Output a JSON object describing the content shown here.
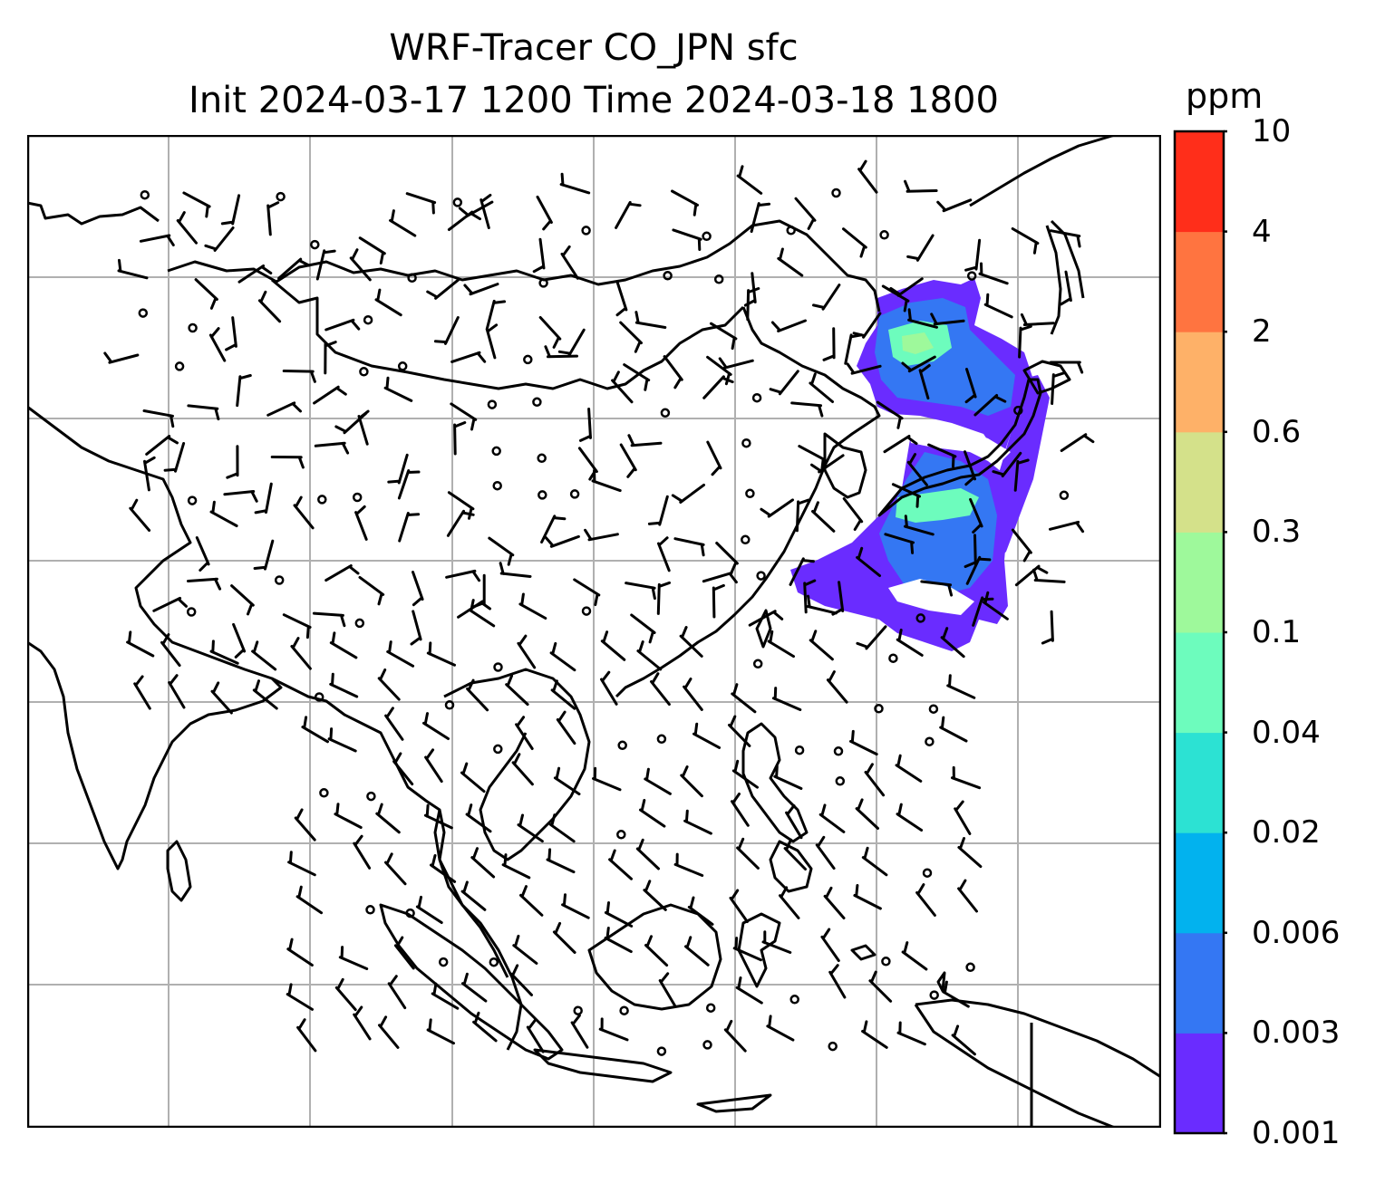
{
  "title": {
    "line1": "WRF-Tracer CO_JPN sfc",
    "line2": "Init 2024-03-17 1200 Time 2024-03-18 1800"
  },
  "colorbar": {
    "units": "ppm",
    "ticks": [
      "0.001",
      "0.003",
      "0.006",
      "0.02",
      "0.04",
      "0.1",
      "0.3",
      "0.6",
      "2",
      "4",
      "10"
    ],
    "colors": [
      "#6a2cff",
      "#3477f3",
      "#02b2ee",
      "#2ce2d3",
      "#6dfcbd",
      "#9ef99b",
      "#d4e18a",
      "#feb168",
      "#ff7440",
      "#ff2e1a"
    ]
  },
  "map": {
    "field": "CO tracer concentration",
    "plume_region": "Japan / Korea / northeast China",
    "barb_color": "#000000",
    "coastline_color": "#000000",
    "grid_color": "#b0b0b0"
  }
}
